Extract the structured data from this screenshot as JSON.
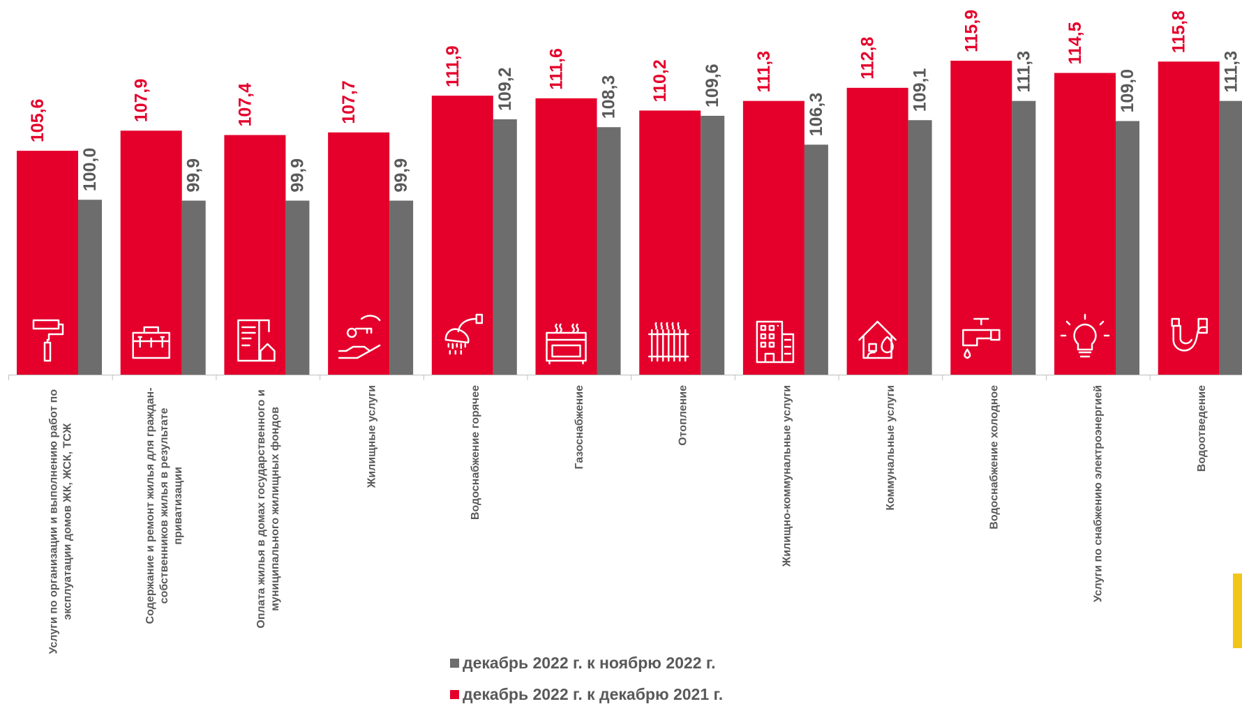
{
  "chart_data": {
    "type": "bar",
    "categories": [
      "Услуги по организации и выполнению работ по эксплуатации домов ЖК, ЖСК, ТСЖ",
      "Содержание и ремонт жилья для граждан-собственников жилья в результате приватизации",
      "Оплата жилья в домах государственного и муниципального жилищных фондов",
      "Жилищные услуги",
      "Водоснабжение горячее",
      "Газоснабжение",
      "Отопление",
      "Жилищно-коммунальные услуги",
      "Коммунальные услуги",
      "Водоснабжение холодное",
      "Услуги по снабжению электроэнергией",
      "Водоотведение"
    ],
    "category_lines": [
      [
        "Услуги по организации и выполнению работ по",
        "эксплуатации домов ЖК, ЖСК, ТСЖ"
      ],
      [
        "Содержание и ремонт жилья для граждан-",
        "собственников жилья в результате",
        "приватизации"
      ],
      [
        "Оплата жилья в домах государственного и",
        "муниципального жилищных фондов"
      ],
      [
        "Жилищные услуги"
      ],
      [
        "Водоснабжение горячее"
      ],
      [
        "Газоснабжение"
      ],
      [
        "Отопление"
      ],
      [
        "Жилищно-коммунальные услуги"
      ],
      [
        "Коммунальные услуги"
      ],
      [
        "Водоснабжение холодное"
      ],
      [
        "Услуги по снабжению электроэнергией"
      ],
      [
        "Водоотведение"
      ]
    ],
    "series": [
      {
        "name": "декабрь 2022 г. к декабрю 2021 г.",
        "color": "#e4002b",
        "values": [
          105.6,
          107.9,
          107.4,
          107.7,
          111.9,
          111.6,
          110.2,
          111.3,
          112.8,
          115.9,
          114.5,
          115.8
        ],
        "labels": [
          "105,6",
          "107,9",
          "107,4",
          "107,7",
          "111,9",
          "111,6",
          "110,2",
          "111,3",
          "112,8",
          "115,9",
          "114,5",
          "115,8"
        ]
      },
      {
        "name": "декабрь 2022 г. к ноябрю 2022 г.",
        "color": "#6d6d6d",
        "values": [
          100.0,
          99.9,
          99.9,
          99.9,
          109.2,
          108.3,
          109.6,
          106.3,
          109.1,
          111.3,
          109.0,
          111.3
        ],
        "labels": [
          "100,0",
          "99,9",
          "99,9",
          "99,9",
          "109,2",
          "108,3",
          "109,6",
          "106,3",
          "109,1",
          "111,3",
          "109,0",
          "111,3"
        ]
      }
    ],
    "icons": [
      "paint-roller-icon",
      "toolbox-icon",
      "house-bill-icon",
      "hand-key-icon",
      "shower-icon",
      "gas-stove-icon",
      "radiator-icon",
      "apartment-building-icon",
      "house-utilities-icon",
      "water-tap-icon",
      "light-bulb-icon",
      "drain-pipe-icon"
    ],
    "ylim": [
      80,
      118
    ],
    "legend_position": "bottom",
    "grid": false
  },
  "legend": {
    "grey_label": "декабрь 2022 г. к ноябрю 2022 г.",
    "red_label": "декабрь 2022 г. к декабрю 2021 г."
  },
  "colors": {
    "red": "#e4002b",
    "grey": "#6d6d6d",
    "accent": "#f2c618"
  }
}
